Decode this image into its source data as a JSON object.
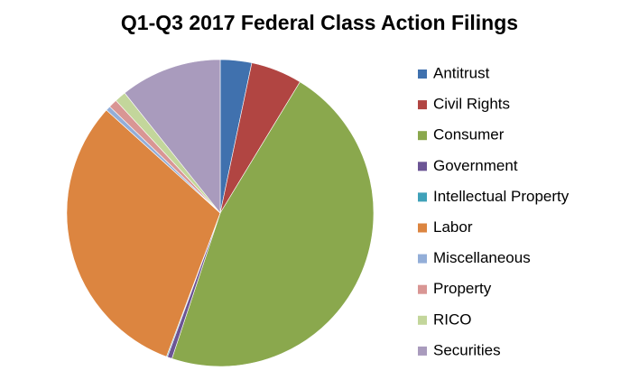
{
  "chart_data": {
    "type": "pie",
    "title": "Q1-Q3 2017 Federal Class Action Filings",
    "categories": [
      "Antitrust",
      "Civil Rights",
      "Consumer",
      "Government",
      "Intellectual Property",
      "Labor",
      "Miscellaneous",
      "Property",
      "RICO",
      "Securities"
    ],
    "values": [
      3.3,
      5.4,
      46.4,
      0.5,
      0.1,
      31,
      0.5,
      0.9,
      1.2,
      10.7
    ],
    "colors": [
      "#4071ae",
      "#b14542",
      "#8aa84d",
      "#6c5595",
      "#3fa1b9",
      "#dc8540",
      "#93aed8",
      "#d99694",
      "#c3d69b",
      "#a99bbd"
    ],
    "legend": "right"
  }
}
